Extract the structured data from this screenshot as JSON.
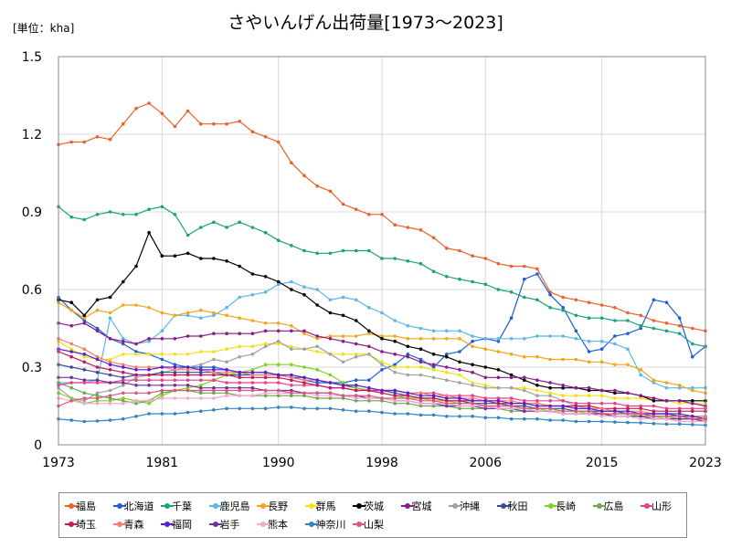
{
  "chart_data": {
    "type": "line",
    "title": "さやいんげん出荷量[1973～2023]",
    "unit_label": "[単位：kha]",
    "ylim": [
      0,
      1.5
    ],
    "y_ticks": [
      "0",
      "0.3",
      "0.6",
      "0.9",
      "1.2",
      "1.5"
    ],
    "y_tick_values": [
      0,
      0.3,
      0.6,
      0.9,
      1.2,
      1.5
    ],
    "x_ticks": [
      "1973",
      "1981",
      "1990",
      "1998",
      "2006",
      "2015",
      "2023"
    ],
    "x_tick_values": [
      1973,
      1981,
      1990,
      1998,
      2006,
      2015,
      2023
    ],
    "grid": true,
    "legend_position": "bottom",
    "years": [
      1973,
      1974,
      1975,
      1976,
      1977,
      1978,
      1979,
      1980,
      1981,
      1982,
      1983,
      1984,
      1985,
      1986,
      1987,
      1988,
      1989,
      1990,
      1991,
      1992,
      1993,
      1994,
      1995,
      1996,
      1997,
      1998,
      1999,
      2000,
      2001,
      2002,
      2003,
      2004,
      2005,
      2006,
      2007,
      2008,
      2009,
      2010,
      2011,
      2012,
      2013,
      2014,
      2015,
      2016,
      2017,
      2018,
      2019,
      2020,
      2021,
      2022,
      2023
    ],
    "series": [
      {
        "name": "福島",
        "color": "#e8622a",
        "values": [
          1.16,
          1.17,
          1.17,
          1.19,
          1.18,
          1.24,
          1.3,
          1.32,
          1.28,
          1.23,
          1.29,
          1.24,
          1.24,
          1.24,
          1.25,
          1.21,
          1.19,
          1.17,
          1.09,
          1.04,
          1.0,
          0.98,
          0.93,
          0.91,
          0.89,
          0.89,
          0.85,
          0.84,
          0.83,
          0.8,
          0.76,
          0.75,
          0.73,
          0.72,
          0.7,
          0.69,
          0.69,
          0.68,
          0.59,
          0.57,
          0.56,
          0.55,
          0.54,
          0.53,
          0.51,
          0.5,
          0.48,
          0.47,
          0.46,
          0.45,
          0.44
        ]
      },
      {
        "name": "北海道",
        "color": "#1f5fd6",
        "values": [
          0.57,
          0.52,
          0.48,
          0.45,
          0.41,
          0.39,
          0.36,
          0.35,
          0.33,
          0.31,
          0.3,
          0.3,
          0.3,
          0.29,
          0.28,
          0.28,
          0.28,
          0.27,
          0.26,
          0.25,
          0.24,
          0.24,
          0.24,
          0.25,
          0.25,
          0.29,
          0.31,
          0.35,
          0.33,
          0.3,
          0.35,
          0.36,
          0.4,
          0.41,
          0.4,
          0.49,
          0.64,
          0.66,
          0.58,
          0.53,
          0.44,
          0.36,
          0.37,
          0.42,
          0.43,
          0.45,
          0.56,
          0.55,
          0.49,
          0.34,
          0.38
        ]
      },
      {
        "name": "千葉",
        "color": "#1aa37a",
        "values": [
          0.92,
          0.88,
          0.87,
          0.89,
          0.9,
          0.89,
          0.89,
          0.91,
          0.92,
          0.89,
          0.81,
          0.84,
          0.86,
          0.84,
          0.86,
          0.84,
          0.82,
          0.79,
          0.77,
          0.75,
          0.74,
          0.74,
          0.75,
          0.75,
          0.75,
          0.72,
          0.72,
          0.71,
          0.7,
          0.67,
          0.65,
          0.64,
          0.63,
          0.62,
          0.6,
          0.59,
          0.57,
          0.56,
          0.53,
          0.52,
          0.5,
          0.49,
          0.49,
          0.48,
          0.48,
          0.46,
          0.45,
          0.44,
          0.43,
          0.39,
          0.38
        ]
      },
      {
        "name": "鹿児島",
        "color": "#5bb7ea",
        "values": [
          0.24,
          0.24,
          0.24,
          0.25,
          0.49,
          0.41,
          0.39,
          0.4,
          0.44,
          0.5,
          0.5,
          0.49,
          0.5,
          0.53,
          0.57,
          0.58,
          0.59,
          0.62,
          0.63,
          0.61,
          0.6,
          0.56,
          0.57,
          0.56,
          0.53,
          0.51,
          0.48,
          0.46,
          0.45,
          0.44,
          0.44,
          0.44,
          0.42,
          0.41,
          0.41,
          0.41,
          0.41,
          0.42,
          0.42,
          0.42,
          0.41,
          0.4,
          0.4,
          0.39,
          0.37,
          0.27,
          0.24,
          0.22,
          0.22,
          0.22,
          0.22
        ]
      },
      {
        "name": "長野",
        "color": "#f4a518",
        "values": [
          0.55,
          0.52,
          0.49,
          0.52,
          0.51,
          0.54,
          0.54,
          0.53,
          0.51,
          0.5,
          0.51,
          0.52,
          0.51,
          0.5,
          0.49,
          0.48,
          0.47,
          0.47,
          0.46,
          0.43,
          0.41,
          0.42,
          0.42,
          0.42,
          0.43,
          0.42,
          0.42,
          0.41,
          0.41,
          0.41,
          0.41,
          0.41,
          0.38,
          0.37,
          0.36,
          0.35,
          0.34,
          0.34,
          0.33,
          0.33,
          0.33,
          0.32,
          0.32,
          0.31,
          0.31,
          0.29,
          0.25,
          0.24,
          0.23,
          0.21,
          0.2
        ]
      },
      {
        "name": "群馬",
        "color": "#f3e01a",
        "values": [
          0.4,
          0.37,
          0.34,
          0.33,
          0.33,
          0.35,
          0.35,
          0.35,
          0.35,
          0.35,
          0.35,
          0.36,
          0.36,
          0.37,
          0.38,
          0.38,
          0.39,
          0.39,
          0.38,
          0.37,
          0.36,
          0.35,
          0.35,
          0.35,
          0.35,
          0.32,
          0.3,
          0.3,
          0.3,
          0.29,
          0.28,
          0.27,
          0.24,
          0.23,
          0.22,
          0.22,
          0.22,
          0.21,
          0.2,
          0.19,
          0.19,
          0.19,
          0.19,
          0.18,
          0.18,
          0.18,
          0.17,
          0.17,
          0.16,
          0.16,
          0.16
        ]
      },
      {
        "name": "茨城",
        "color": "#000000",
        "values": [
          0.56,
          0.55,
          0.5,
          0.56,
          0.57,
          0.63,
          0.69,
          0.82,
          0.73,
          0.73,
          0.74,
          0.72,
          0.72,
          0.71,
          0.69,
          0.66,
          0.65,
          0.63,
          0.6,
          0.58,
          0.54,
          0.51,
          0.5,
          0.48,
          0.44,
          0.41,
          0.4,
          0.38,
          0.37,
          0.35,
          0.34,
          0.32,
          0.31,
          0.3,
          0.29,
          0.27,
          0.25,
          0.23,
          0.22,
          0.22,
          0.22,
          0.21,
          0.21,
          0.2,
          0.2,
          0.19,
          0.17,
          0.17,
          0.17,
          0.17,
          0.17
        ]
      },
      {
        "name": "宮城",
        "color": "#8b1a8b",
        "values": [
          0.47,
          0.46,
          0.47,
          0.44,
          0.41,
          0.4,
          0.39,
          0.41,
          0.41,
          0.41,
          0.42,
          0.42,
          0.43,
          0.43,
          0.43,
          0.43,
          0.44,
          0.44,
          0.44,
          0.44,
          0.42,
          0.41,
          0.4,
          0.39,
          0.38,
          0.36,
          0.35,
          0.34,
          0.32,
          0.31,
          0.3,
          0.29,
          0.28,
          0.26,
          0.26,
          0.26,
          0.26,
          0.25,
          0.24,
          0.23,
          0.22,
          0.22,
          0.21,
          0.21,
          0.2,
          0.19,
          0.18,
          0.17,
          0.17,
          0.16,
          0.15
        ]
      },
      {
        "name": "沖縄",
        "color": "#9ea3a8",
        "values": [
          0.22,
          0.18,
          0.17,
          0.2,
          0.21,
          0.23,
          0.26,
          0.27,
          0.28,
          0.29,
          0.3,
          0.31,
          0.33,
          0.32,
          0.34,
          0.35,
          0.38,
          0.4,
          0.37,
          0.37,
          0.38,
          0.35,
          0.32,
          0.34,
          0.35,
          0.31,
          0.28,
          0.27,
          0.27,
          0.26,
          0.25,
          0.24,
          0.23,
          0.22,
          0.22,
          0.22,
          0.21,
          0.19,
          0.19,
          0.17,
          0.15,
          0.14,
          0.13,
          0.13,
          0.12,
          0.12,
          0.11,
          0.11,
          0.1,
          0.1,
          0.1
        ]
      },
      {
        "name": "秋田",
        "color": "#3a4a9a",
        "values": [
          0.31,
          0.3,
          0.29,
          0.28,
          0.27,
          0.26,
          0.27,
          0.27,
          0.28,
          0.28,
          0.28,
          0.28,
          0.28,
          0.27,
          0.27,
          0.27,
          0.27,
          0.27,
          0.26,
          0.26,
          0.25,
          0.24,
          0.23,
          0.22,
          0.21,
          0.21,
          0.2,
          0.19,
          0.18,
          0.18,
          0.17,
          0.17,
          0.16,
          0.16,
          0.16,
          0.15,
          0.15,
          0.14,
          0.14,
          0.14,
          0.13,
          0.13,
          0.13,
          0.13,
          0.12,
          0.12,
          0.12,
          0.12,
          0.12,
          0.11,
          0.11
        ]
      },
      {
        "name": "長崎",
        "color": "#7ed321",
        "values": [
          0.2,
          0.18,
          0.16,
          0.17,
          0.17,
          0.18,
          0.17,
          0.16,
          0.19,
          0.21,
          0.22,
          0.23,
          0.25,
          0.27,
          0.28,
          0.29,
          0.31,
          0.31,
          0.31,
          0.3,
          0.29,
          0.27,
          0.24,
          0.22,
          0.21,
          0.2,
          0.19,
          0.18,
          0.18,
          0.17,
          0.17,
          0.16,
          0.16,
          0.15,
          0.15,
          0.15,
          0.14,
          0.14,
          0.13,
          0.13,
          0.13,
          0.12,
          0.12,
          0.12,
          0.12,
          0.11,
          0.11,
          0.1,
          0.1,
          0.1,
          0.1
        ]
      },
      {
        "name": "広島",
        "color": "#6aa84f",
        "values": [
          0.24,
          0.22,
          0.2,
          0.19,
          0.18,
          0.17,
          0.16,
          0.17,
          0.2,
          0.21,
          0.21,
          0.2,
          0.2,
          0.2,
          0.19,
          0.19,
          0.19,
          0.19,
          0.19,
          0.19,
          0.18,
          0.18,
          0.18,
          0.17,
          0.17,
          0.17,
          0.16,
          0.16,
          0.15,
          0.15,
          0.15,
          0.14,
          0.14,
          0.14,
          0.14,
          0.13,
          0.13,
          0.13,
          0.13,
          0.12,
          0.12,
          0.12,
          0.12,
          0.11,
          0.11,
          0.11,
          0.11,
          0.11,
          0.1,
          0.1,
          0.1
        ]
      },
      {
        "name": "山形",
        "color": "#e83e8c",
        "values": [
          0.23,
          0.24,
          0.24,
          0.24,
          0.24,
          0.25,
          0.25,
          0.25,
          0.25,
          0.25,
          0.25,
          0.25,
          0.25,
          0.24,
          0.24,
          0.24,
          0.24,
          0.24,
          0.23,
          0.23,
          0.23,
          0.22,
          0.22,
          0.21,
          0.21,
          0.21,
          0.21,
          0.2,
          0.2,
          0.2,
          0.19,
          0.19,
          0.19,
          0.18,
          0.18,
          0.18,
          0.17,
          0.17,
          0.17,
          0.17,
          0.16,
          0.16,
          0.16,
          0.16,
          0.15,
          0.15,
          0.15,
          0.14,
          0.14,
          0.14,
          0.14
        ]
      },
      {
        "name": "埼玉",
        "color": "#c2185b",
        "values": [
          0.36,
          0.34,
          0.32,
          0.3,
          0.29,
          0.28,
          0.27,
          0.27,
          0.27,
          0.27,
          0.27,
          0.27,
          0.27,
          0.27,
          0.26,
          0.26,
          0.26,
          0.26,
          0.25,
          0.24,
          0.23,
          0.22,
          0.22,
          0.21,
          0.21,
          0.2,
          0.19,
          0.19,
          0.18,
          0.18,
          0.17,
          0.17,
          0.17,
          0.17,
          0.16,
          0.16,
          0.16,
          0.16,
          0.15,
          0.15,
          0.15,
          0.15,
          0.14,
          0.14,
          0.14,
          0.14,
          0.13,
          0.13,
          0.13,
          0.13,
          0.13
        ]
      },
      {
        "name": "青森",
        "color": "#f08070",
        "values": [
          0.41,
          0.39,
          0.37,
          0.34,
          0.32,
          0.31,
          0.3,
          0.3,
          0.3,
          0.29,
          0.29,
          0.29,
          0.28,
          0.28,
          0.28,
          0.27,
          0.27,
          0.27,
          0.26,
          0.25,
          0.25,
          0.24,
          0.23,
          0.23,
          0.22,
          0.21,
          0.21,
          0.2,
          0.2,
          0.19,
          0.19,
          0.18,
          0.18,
          0.17,
          0.17,
          0.17,
          0.16,
          0.16,
          0.15,
          0.15,
          0.14,
          0.14,
          0.14,
          0.13,
          0.13,
          0.13,
          0.12,
          0.12,
          0.11,
          0.11,
          0.11
        ]
      },
      {
        "name": "福岡",
        "color": "#5b1fc9",
        "values": [
          0.37,
          0.36,
          0.35,
          0.33,
          0.31,
          0.3,
          0.29,
          0.29,
          0.3,
          0.3,
          0.3,
          0.29,
          0.29,
          0.29,
          0.28,
          0.28,
          0.28,
          0.27,
          0.27,
          0.26,
          0.25,
          0.24,
          0.23,
          0.23,
          0.22,
          0.21,
          0.21,
          0.2,
          0.19,
          0.19,
          0.18,
          0.18,
          0.17,
          0.17,
          0.17,
          0.16,
          0.16,
          0.15,
          0.15,
          0.15,
          0.14,
          0.14,
          0.13,
          0.13,
          0.13,
          0.12,
          0.12,
          0.12,
          0.11,
          0.11,
          0.1
        ]
      },
      {
        "name": "岩手",
        "color": "#7030a0",
        "values": [
          0.26,
          0.26,
          0.25,
          0.25,
          0.24,
          0.24,
          0.23,
          0.23,
          0.23,
          0.23,
          0.23,
          0.22,
          0.22,
          0.22,
          0.22,
          0.22,
          0.21,
          0.21,
          0.21,
          0.2,
          0.2,
          0.2,
          0.19,
          0.19,
          0.18,
          0.18,
          0.17,
          0.17,
          0.16,
          0.16,
          0.15,
          0.15,
          0.15,
          0.14,
          0.14,
          0.14,
          0.13,
          0.13,
          0.13,
          0.12,
          0.12,
          0.12,
          0.12,
          0.11,
          0.11,
          0.11,
          0.1,
          0.1,
          0.1,
          0.1,
          0.09
        ]
      },
      {
        "name": "熊本",
        "color": "#f4a6d7",
        "values": [
          0.18,
          0.17,
          0.16,
          0.16,
          0.16,
          0.16,
          0.17,
          0.17,
          0.18,
          0.18,
          0.18,
          0.18,
          0.18,
          0.19,
          0.19,
          0.19,
          0.2,
          0.2,
          0.2,
          0.2,
          0.19,
          0.19,
          0.19,
          0.18,
          0.18,
          0.18,
          0.17,
          0.17,
          0.16,
          0.16,
          0.16,
          0.15,
          0.15,
          0.15,
          0.14,
          0.14,
          0.14,
          0.13,
          0.13,
          0.12,
          0.12,
          0.12,
          0.11,
          0.11,
          0.11,
          0.1,
          0.1,
          0.1,
          0.09,
          0.09,
          0.09
        ]
      },
      {
        "name": "神奈川",
        "color": "#2e86c1",
        "values": [
          0.1,
          0.095,
          0.09,
          0.092,
          0.095,
          0.1,
          0.11,
          0.12,
          0.12,
          0.12,
          0.125,
          0.13,
          0.135,
          0.14,
          0.14,
          0.14,
          0.14,
          0.145,
          0.145,
          0.14,
          0.14,
          0.14,
          0.135,
          0.13,
          0.13,
          0.125,
          0.12,
          0.12,
          0.115,
          0.115,
          0.11,
          0.11,
          0.11,
          0.105,
          0.105,
          0.1,
          0.1,
          0.1,
          0.095,
          0.095,
          0.09,
          0.09,
          0.09,
          0.088,
          0.086,
          0.085,
          0.082,
          0.08,
          0.08,
          0.078,
          0.076
        ]
      },
      {
        "name": "山梨",
        "color": "#d8577a",
        "values": [
          0.15,
          0.17,
          0.18,
          0.18,
          0.19,
          0.2,
          0.2,
          0.2,
          0.21,
          0.21,
          0.21,
          0.21,
          0.21,
          0.21,
          0.21,
          0.21,
          0.21,
          0.21,
          0.2,
          0.2,
          0.2,
          0.2,
          0.19,
          0.19,
          0.19,
          0.18,
          0.18,
          0.18,
          0.17,
          0.17,
          0.16,
          0.16,
          0.16,
          0.15,
          0.15,
          0.15,
          0.14,
          0.14,
          0.14,
          0.13,
          0.13,
          0.13,
          0.12,
          0.12,
          0.12,
          0.12,
          0.11,
          0.11,
          0.11,
          0.1,
          0.1
        ]
      }
    ]
  }
}
